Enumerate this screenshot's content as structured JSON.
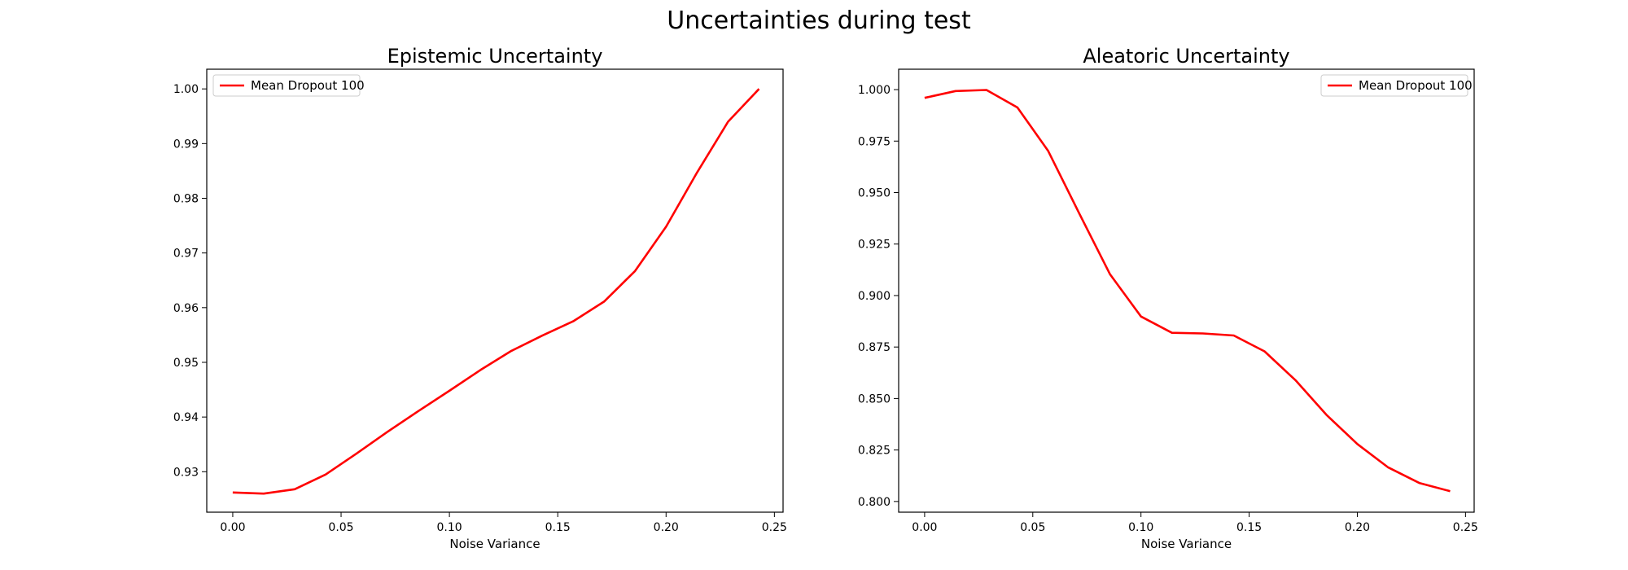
{
  "figure": {
    "title": "Uncertainties during test"
  },
  "chart_data": [
    {
      "type": "line",
      "title": "Epistemic Uncertainty",
      "xlabel": "Noise Variance",
      "ylabel": "",
      "xlim": [
        -0.012,
        0.254
      ],
      "ylim": [
        0.9226,
        1.0036
      ],
      "x_ticks": [
        0.0,
        0.05,
        0.1,
        0.15,
        0.2,
        0.25
      ],
      "x_tick_labels": [
        "0.00",
        "0.05",
        "0.10",
        "0.15",
        "0.20",
        "0.25"
      ],
      "y_ticks": [
        0.93,
        0.94,
        0.95,
        0.96,
        0.97,
        0.98,
        0.99,
        1.0
      ],
      "y_tick_labels": [
        "0.93",
        "0.94",
        "0.95",
        "0.96",
        "0.97",
        "0.98",
        "0.99",
        "1.00"
      ],
      "grid": false,
      "legend": {
        "position": "upper-left",
        "entries": [
          "Mean Dropout 100"
        ]
      },
      "series": [
        {
          "name": "Mean Dropout 100",
          "color": "#ff0000",
          "x": [
            0.0,
            0.0143,
            0.0286,
            0.0429,
            0.0571,
            0.0714,
            0.0857,
            0.1,
            0.1143,
            0.1286,
            0.1429,
            0.1571,
            0.1714,
            0.1857,
            0.2,
            0.2143,
            0.2286,
            0.2429
          ],
          "y": [
            0.9262,
            0.926,
            0.9268,
            0.9295,
            0.9333,
            0.9373,
            0.9411,
            0.9448,
            0.9486,
            0.9521,
            0.9549,
            0.9575,
            0.9611,
            0.9667,
            0.9748,
            0.9847,
            0.994,
            1.0
          ]
        }
      ]
    },
    {
      "type": "line",
      "title": "Aleatoric Uncertainty",
      "xlabel": "Noise Variance",
      "ylabel": "",
      "xlim": [
        -0.012,
        0.254
      ],
      "ylim": [
        0.7948,
        1.0099
      ],
      "x_ticks": [
        0.0,
        0.05,
        0.1,
        0.15,
        0.2,
        0.25
      ],
      "x_tick_labels": [
        "0.00",
        "0.05",
        "0.10",
        "0.15",
        "0.20",
        "0.25"
      ],
      "y_ticks": [
        0.8,
        0.825,
        0.85,
        0.875,
        0.9,
        0.925,
        0.95,
        0.975,
        1.0
      ],
      "y_tick_labels": [
        "0.800",
        "0.825",
        "0.850",
        "0.875",
        "0.900",
        "0.925",
        "0.950",
        "0.975",
        "1.000"
      ],
      "grid": false,
      "legend": {
        "position": "upper-right",
        "entries": [
          "Mean Dropout 100"
        ]
      },
      "series": [
        {
          "name": "Mean Dropout 100",
          "color": "#ff0000",
          "x": [
            0.0,
            0.0143,
            0.0286,
            0.0429,
            0.0571,
            0.0714,
            0.0857,
            0.1,
            0.1143,
            0.1286,
            0.1429,
            0.1571,
            0.1714,
            0.1857,
            0.2,
            0.2143,
            0.2286,
            0.2429
          ],
          "y": [
            0.996,
            0.9993,
            0.9998,
            0.9913,
            0.9702,
            0.94,
            0.9103,
            0.8898,
            0.8819,
            0.8816,
            0.8806,
            0.8729,
            0.8589,
            0.8421,
            0.8279,
            0.8165,
            0.809,
            0.805
          ]
        }
      ]
    }
  ]
}
